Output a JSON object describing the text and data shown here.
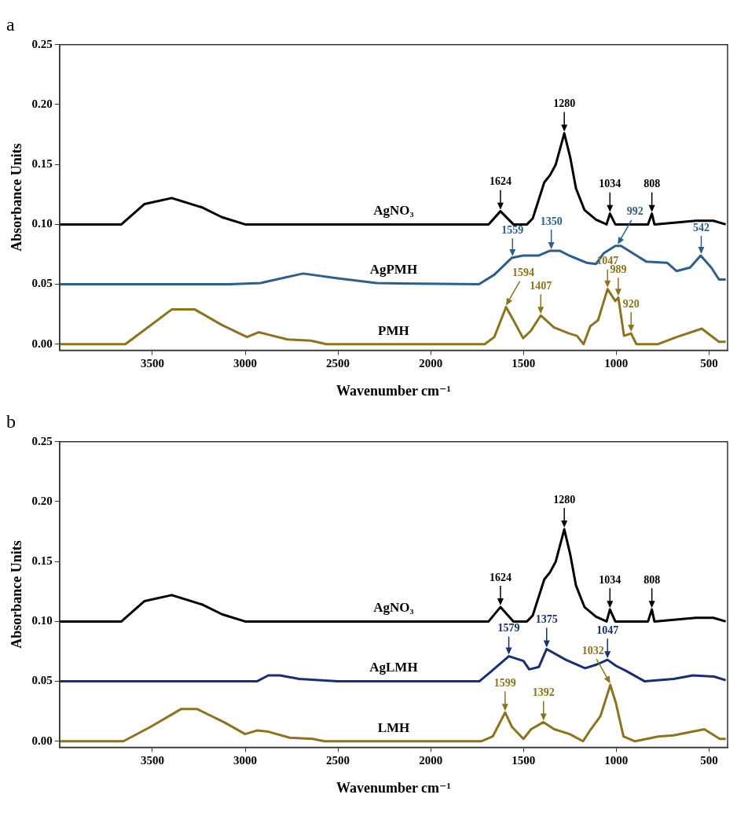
{
  "chart_data": [
    {
      "type": "line",
      "title": "a",
      "xlabel": "Wavenumber cm⁻¹",
      "ylabel": "Absorbance Units",
      "xlim": [
        4000,
        400
      ],
      "ylim": [
        -0.005,
        0.25
      ],
      "xticks": [
        3500,
        3000,
        2500,
        2000,
        1500,
        1000,
        500
      ],
      "yticks": [
        {
          "value": 0,
          "label": "0.00"
        },
        {
          "value": 0.05,
          "label": "0.05"
        },
        {
          "value": 0.1,
          "label": "0.10"
        },
        {
          "value": 0.15,
          "label": "0.15"
        },
        {
          "value": 0.2,
          "label": "0.20"
        },
        {
          "value": 0.25,
          "label": "0.25"
        }
      ],
      "grid": false,
      "legend": false,
      "series": [
        {
          "name": "AgNO₃",
          "color": "#000000",
          "x": [
            4000,
            3667,
            3542,
            3396,
            3229,
            3125,
            3000,
            2500,
            2000,
            1812,
            1750,
            1688,
            1624,
            1554,
            1481,
            1450,
            1388,
            1357,
            1326,
            1280,
            1248,
            1217,
            1171,
            1109,
            1052,
            1034,
            1005,
            829,
            808,
            794,
            571,
            477,
            410
          ],
          "values": [
            0.1,
            0.1,
            0.117,
            0.122,
            0.114,
            0.106,
            0.1,
            0.1,
            0.1,
            0.1,
            0.1,
            0.1,
            0.111,
            0.1,
            0.1,
            0.105,
            0.135,
            0.141,
            0.15,
            0.176,
            0.156,
            0.13,
            0.112,
            0.104,
            0.1,
            0.109,
            0.1,
            0.1,
            0.109,
            0.1,
            0.103,
            0.103,
            0.1
          ]
        },
        {
          "name": "AgPMH",
          "color": "#2e5f8a",
          "x": [
            4000,
            3083,
            2917,
            2833,
            2688,
            2500,
            2292,
            1740,
            1657,
            1564,
            1502,
            1419,
            1357,
            1305,
            1254,
            1160,
            1109,
            1067,
            1005,
            974,
            901,
            839,
            726,
            674,
            602,
            545,
            488,
            446,
            410
          ],
          "values": [
            0.05,
            0.05,
            0.051,
            0.054,
            0.059,
            0.055,
            0.051,
            0.05,
            0.058,
            0.072,
            0.074,
            0.074,
            0.078,
            0.078,
            0.074,
            0.068,
            0.067,
            0.076,
            0.082,
            0.082,
            0.075,
            0.069,
            0.068,
            0.061,
            0.064,
            0.074,
            0.064,
            0.054,
            0.054
          ]
        },
        {
          "name": "PMH",
          "color": "#8b7320",
          "x": [
            4000,
            3646,
            3542,
            3396,
            3271,
            3125,
            2990,
            2927,
            2875,
            2771,
            2646,
            2562,
            1709,
            1657,
            1594,
            1554,
            1502,
            1461,
            1407,
            1336,
            1254,
            1212,
            1176,
            1140,
            1098,
            1047,
            1005,
            989,
            958,
            920,
            891,
            777,
            674,
            539,
            446,
            410
          ],
          "values": [
            0,
            0,
            0.012,
            0.029,
            0.029,
            0.016,
            0.006,
            0.01,
            0.008,
            0.004,
            0.003,
            0,
            0,
            0.006,
            0.031,
            0.02,
            0.005,
            0.011,
            0.024,
            0.014,
            0.009,
            0.007,
            0,
            0.015,
            0.02,
            0.046,
            0.036,
            0.039,
            0.007,
            0.009,
            0,
            0,
            0.006,
            0.013,
            0.002,
            0.002
          ]
        }
      ],
      "annotations": [
        {
          "text": "1624",
          "x": 1624,
          "y": 0.111
        },
        {
          "text": "1280",
          "x": 1280,
          "y": 0.176
        },
        {
          "text": "1034",
          "x": 1034,
          "y": 0.109
        },
        {
          "text": "808",
          "x": 808,
          "y": 0.109
        },
        {
          "text": "1559",
          "x": 1559,
          "y": 0.072
        },
        {
          "text": "1350",
          "x": 1350,
          "y": 0.078
        },
        {
          "text": "992",
          "x": 992,
          "y": 0.082
        },
        {
          "text": "542",
          "x": 542,
          "y": 0.074
        },
        {
          "text": "1594",
          "x": 1594,
          "y": 0.031
        },
        {
          "text": "1407",
          "x": 1407,
          "y": 0.024
        },
        {
          "text": "1047",
          "x": 1047,
          "y": 0.046
        },
        {
          "text": "989",
          "x": 989,
          "y": 0.039
        },
        {
          "text": "920",
          "x": 920,
          "y": 0.009
        }
      ]
    },
    {
      "type": "line",
      "title": "b",
      "xlabel": "Wavenumber cm⁻¹",
      "ylabel": "Absorbance Units",
      "xlim": [
        4000,
        400
      ],
      "ylim": [
        -0.005,
        0.25
      ],
      "xticks": [
        3500,
        3000,
        2500,
        2000,
        1500,
        1000,
        500
      ],
      "yticks": [
        {
          "value": 0,
          "label": "0.00"
        },
        {
          "value": 0.05,
          "label": "0.05"
        },
        {
          "value": 0.1,
          "label": "0.10"
        },
        {
          "value": 0.15,
          "label": "0.15"
        },
        {
          "value": 0.2,
          "label": "0.20"
        },
        {
          "value": 0.25,
          "label": "0.25"
        }
      ],
      "grid": false,
      "legend": false,
      "series": [
        {
          "name": "AgNO₃",
          "color": "#000000",
          "x": [
            4000,
            3667,
            3542,
            3396,
            3229,
            3125,
            3000,
            2500,
            2000,
            1812,
            1750,
            1688,
            1624,
            1554,
            1481,
            1450,
            1388,
            1357,
            1326,
            1280,
            1248,
            1217,
            1171,
            1109,
            1052,
            1034,
            1005,
            829,
            808,
            794,
            571,
            477,
            410
          ],
          "values": [
            0.1,
            0.1,
            0.117,
            0.122,
            0.114,
            0.106,
            0.1,
            0.1,
            0.1,
            0.1,
            0.1,
            0.1,
            0.112,
            0.1,
            0.1,
            0.105,
            0.135,
            0.141,
            0.15,
            0.177,
            0.156,
            0.13,
            0.112,
            0.104,
            0.1,
            0.11,
            0.1,
            0.1,
            0.11,
            0.1,
            0.103,
            0.103,
            0.1
          ]
        },
        {
          "name": "AgLMH",
          "color": "#1a2f6e",
          "x": [
            4000,
            2937,
            2875,
            2812,
            2708,
            2500,
            1738,
            1676,
            1579,
            1500,
            1469,
            1417,
            1375,
            1272,
            1168,
            1106,
            1047,
            1002,
            950,
            846,
            691,
            587,
            473,
            410
          ],
          "values": [
            0.05,
            0.05,
            0.055,
            0.055,
            0.052,
            0.05,
            0.05,
            0.058,
            0.071,
            0.067,
            0.06,
            0.062,
            0.077,
            0.068,
            0.061,
            0.064,
            0.068,
            0.063,
            0.059,
            0.05,
            0.052,
            0.055,
            0.054,
            0.051
          ]
        },
        {
          "name": "LMH",
          "color": "#8b7320",
          "x": [
            4000,
            3656,
            3510,
            3344,
            3260,
            3115,
            3000,
            2937,
            2875,
            2760,
            2635,
            2573,
            1728,
            1666,
            1599,
            1562,
            1500,
            1459,
            1392,
            1334,
            1251,
            1179,
            1137,
            1085,
            1032,
            1002,
            961,
            899,
            774,
            691,
            525,
            442,
            410
          ],
          "values": [
            0,
            0,
            0.012,
            0.027,
            0.027,
            0.016,
            0.006,
            0.009,
            0.008,
            0.003,
            0.002,
            0,
            0,
            0.004,
            0.024,
            0.012,
            0.002,
            0.01,
            0.016,
            0.01,
            0.006,
            0,
            0.01,
            0.021,
            0.047,
            0.032,
            0.004,
            0,
            0.004,
            0.005,
            0.01,
            0.002,
            0.002
          ]
        }
      ],
      "annotations": [
        {
          "text": "1624",
          "x": 1624,
          "y": 0.112
        },
        {
          "text": "1280",
          "x": 1280,
          "y": 0.177
        },
        {
          "text": "1034",
          "x": 1034,
          "y": 0.11
        },
        {
          "text": "808",
          "x": 808,
          "y": 0.11
        },
        {
          "text": "1579",
          "x": 1579,
          "y": 0.071
        },
        {
          "text": "1375",
          "x": 1375,
          "y": 0.077
        },
        {
          "text": "1047",
          "x": 1047,
          "y": 0.068
        },
        {
          "text": "1599",
          "x": 1599,
          "y": 0.024
        },
        {
          "text": "1392",
          "x": 1392,
          "y": 0.016
        },
        {
          "text": "1032",
          "x": 1032,
          "y": 0.047
        }
      ]
    }
  ]
}
